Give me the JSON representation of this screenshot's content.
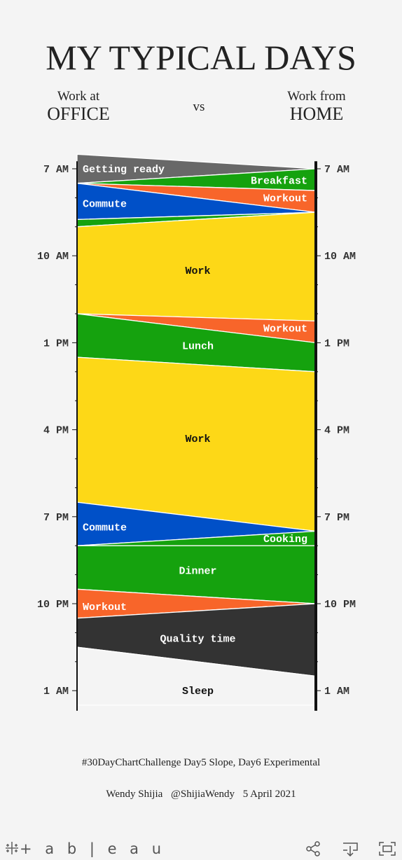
{
  "header": {
    "title": "MY TYPICAL DAYS",
    "left_line1": "Work at",
    "left_line2": "OFFICE",
    "vs": "vs",
    "right_line1": "Work from",
    "right_line2": "HOME"
  },
  "chart_data": {
    "type": "slope",
    "unit": "hours after 7 AM",
    "range": [
      -0.5,
      18.5
    ],
    "left_axis": {
      "title": "Work at OFFICE",
      "ticks": [
        {
          "label": "7 AM",
          "value": 0
        },
        {
          "label": "10 AM",
          "value": 3
        },
        {
          "label": "1 PM",
          "value": 6
        },
        {
          "label": "4 PM",
          "value": 9
        },
        {
          "label": "7 PM",
          "value": 12
        },
        {
          "label": "10 PM",
          "value": 15
        },
        {
          "label": "1 AM",
          "value": 18
        }
      ]
    },
    "right_axis": {
      "title": "Work from HOME",
      "ticks": [
        {
          "label": "7 AM",
          "value": 0
        },
        {
          "label": "10 AM",
          "value": 3
        },
        {
          "label": "1 PM",
          "value": 6
        },
        {
          "label": "4 PM",
          "value": 9
        },
        {
          "label": "7 PM",
          "value": 12
        },
        {
          "label": "10 PM",
          "value": 15
        },
        {
          "label": "1 AM",
          "value": 18
        }
      ]
    },
    "activities": [
      {
        "label": "Getting ready",
        "color": "#686868",
        "text_color": "#ffffff",
        "office": [
          -0.5,
          0.5
        ],
        "home": [
          0,
          0
        ],
        "label_side": "left",
        "label_at": 0
      },
      {
        "label": "Breakfast",
        "color": "#15a20e",
        "text_color": "#ffffff",
        "office": [
          0.5,
          0.5
        ],
        "home": [
          0,
          0.75
        ],
        "label_side": "right",
        "label_at": 0.4
      },
      {
        "label": "Workout",
        "color": "#f8652a",
        "text_color": "#ffffff",
        "office": [
          0.5,
          0.5
        ],
        "home": [
          0.75,
          1.5
        ],
        "label_side": "right",
        "label_at": 1.0
      },
      {
        "label": "Commute",
        "color": "#0050c8",
        "text_color": "#ffffff",
        "office": [
          0.5,
          1.75
        ],
        "home": [
          1.5,
          1.5
        ],
        "label_side": "left",
        "label_at": 1.2
      },
      {
        "label": "",
        "color": "#15a20e",
        "text_color": "#ffffff",
        "office": [
          1.75,
          2.0
        ],
        "home": [
          1.5,
          1.5
        ],
        "label_side": "none",
        "label_at": 1.7
      },
      {
        "label": "Work",
        "color": "#fdd817",
        "text_color": "#111111",
        "office": [
          2.0,
          5.0
        ],
        "home": [
          1.5,
          5.25
        ],
        "label_side": "center",
        "label_at": 3.5
      },
      {
        "label": "Workout",
        "color": "#f8652a",
        "text_color": "#ffffff",
        "office": [
          5.0,
          5.0
        ],
        "home": [
          5.25,
          6.0
        ],
        "label_side": "right",
        "label_at": 5.5
      },
      {
        "label": "Lunch",
        "color": "#15a20e",
        "text_color": "#ffffff",
        "office": [
          5.0,
          6.5
        ],
        "home": [
          6.0,
          7.0
        ],
        "label_side": "center",
        "label_at": 6.1
      },
      {
        "label": "Work",
        "color": "#fdd817",
        "text_color": "#111111",
        "office": [
          6.5,
          11.5
        ],
        "home": [
          7.0,
          12.5
        ],
        "label_side": "center",
        "label_at": 9.3
      },
      {
        "label": "Commute",
        "color": "#0050c8",
        "text_color": "#ffffff",
        "office": [
          11.5,
          13.0
        ],
        "home": [
          12.5,
          12.5
        ],
        "label_side": "left",
        "label_at": 12.35
      },
      {
        "label": "Cooking",
        "color": "#15a20e",
        "text_color": "#ffffff",
        "office": [
          13.0,
          13.0
        ],
        "home": [
          12.5,
          13.0
        ],
        "label_side": "right",
        "label_at": 12.75
      },
      {
        "label": "Dinner",
        "color": "#15a20e",
        "text_color": "#ffffff",
        "office": [
          13.0,
          14.5
        ],
        "home": [
          13.0,
          15.0
        ],
        "label_side": "center",
        "label_at": 13.85
      },
      {
        "label": "Workout",
        "color": "#f8652a",
        "text_color": "#ffffff",
        "office": [
          14.5,
          15.5
        ],
        "home": [
          15.0,
          15.0
        ],
        "label_side": "left",
        "label_at": 15.1
      },
      {
        "label": "Quality time",
        "color": "#333333",
        "text_color": "#ffffff",
        "office": [
          15.5,
          16.5
        ],
        "home": [
          15.0,
          17.5
        ],
        "label_side": "center",
        "label_at": 16.2
      },
      {
        "label": "Sleep",
        "color": "#f4f4f4",
        "text_color": "#111111",
        "office": [
          16.5,
          18.5
        ],
        "home": [
          17.5,
          18.5
        ],
        "label_side": "center",
        "label_at": 18.0
      }
    ]
  },
  "footer": {
    "challenge": "#30DayChartChallenge Day5 Slope, Day6 Experimental",
    "author": "Wendy Shijia",
    "handle": "@ShijiaWendy",
    "date": "5 April 2021"
  },
  "toolbar": {
    "logo": "+ a b | e a u",
    "icons": [
      "tableau-logo-icon",
      "share-icon",
      "download-icon",
      "fullscreen-icon"
    ]
  }
}
